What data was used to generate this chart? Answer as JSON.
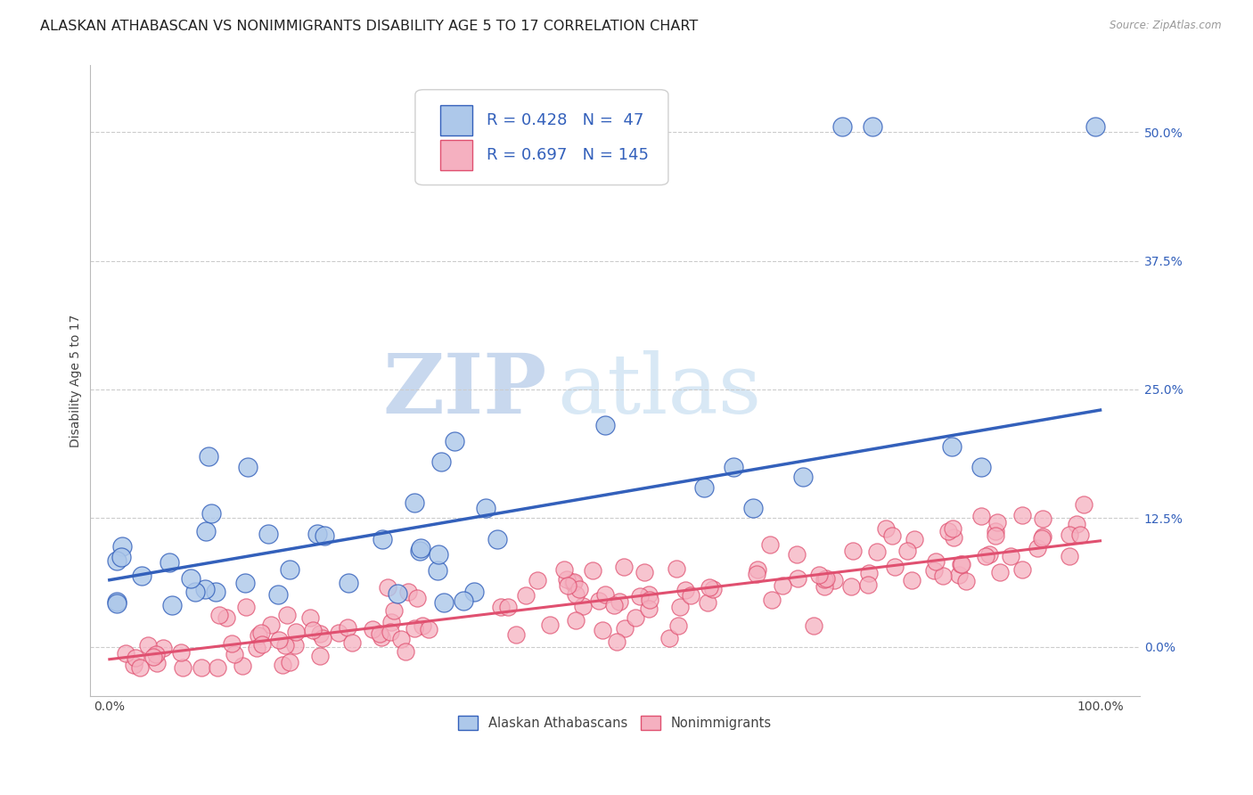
{
  "title": "ALASKAN ATHABASCAN VS NONIMMIGRANTS DISABILITY AGE 5 TO 17 CORRELATION CHART",
  "source": "Source: ZipAtlas.com",
  "ylabel": "Disability Age 5 to 17",
  "series1_label": "Alaskan Athabascans",
  "series2_label": "Nonimmigrants",
  "series1_face_color": "#adc8ea",
  "series2_face_color": "#f5b0c0",
  "line1_color": "#3360bb",
  "line2_color": "#e05070",
  "R1": 0.428,
  "N1": 47,
  "R2": 0.697,
  "N2": 145,
  "regression1_slope": 0.165,
  "regression1_intercept": 0.065,
  "regression2_slope": 0.115,
  "regression2_intercept": -0.012,
  "xlim_min": -0.02,
  "xlim_max": 1.04,
  "ylim_min": -0.048,
  "ylim_max": 0.565,
  "yticks_right": [
    0.0,
    0.125,
    0.25,
    0.375,
    0.5
  ],
  "xticks": [
    0.0,
    1.0
  ],
  "xticklabels": [
    "0.0%",
    "100.0%"
  ],
  "background_color": "#ffffff",
  "grid_color": "#cccccc",
  "title_fontsize": 11.5,
  "axis_label_fontsize": 10,
  "tick_fontsize": 10,
  "legend_fontsize": 13,
  "right_tick_color": "#3360bb",
  "watermark_color_zip": "#c8d8ee",
  "watermark_color_atlas": "#d8e8f5"
}
